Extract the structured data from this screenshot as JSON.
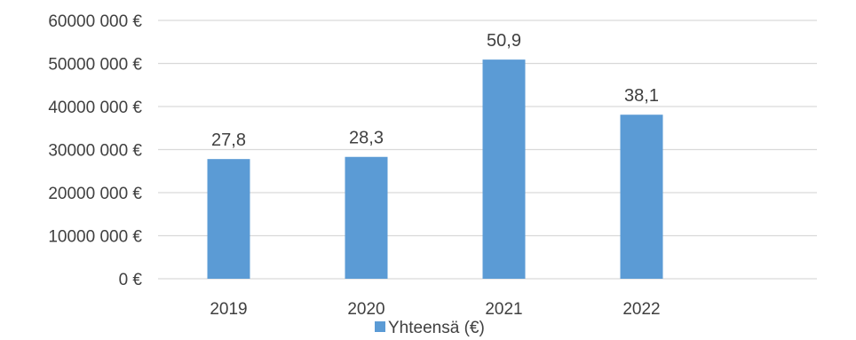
{
  "chart_data": {
    "type": "bar",
    "categories": [
      "2019",
      "2020",
      "2021",
      "2022"
    ],
    "series": [
      {
        "name": "Yhteensä (€)",
        "values": [
          27800000,
          28300000,
          50900000,
          38100000
        ],
        "data_labels": [
          "27,8",
          "28,3",
          "50,9",
          "38,1"
        ],
        "color": "#5b9bd5"
      }
    ],
    "ylim": [
      0,
      60000000
    ],
    "yticks": [
      {
        "value": 0,
        "label": "0 €"
      },
      {
        "value": 10000000,
        "label": "10000 000 €"
      },
      {
        "value": 20000000,
        "label": "20000 000 €"
      },
      {
        "value": 30000000,
        "label": "30000 000 €"
      },
      {
        "value": 40000000,
        "label": "40000 000 €"
      },
      {
        "value": 50000000,
        "label": "50000 000 €"
      },
      {
        "value": 60000000,
        "label": "60000 000 €"
      }
    ],
    "grid": true,
    "gridline_color": "#d9d9d9",
    "legend": {
      "position": "bottom",
      "label": "Yhteensä (€)"
    }
  }
}
